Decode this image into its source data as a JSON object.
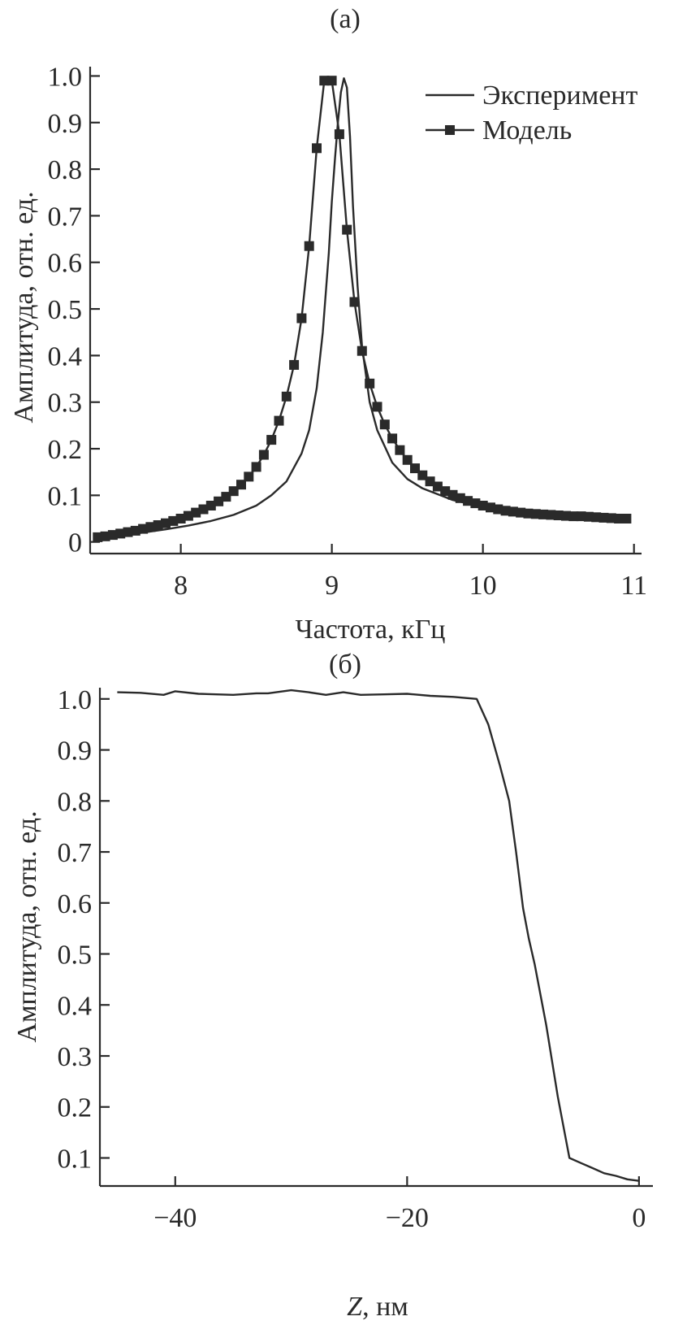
{
  "chart_data": [
    {
      "type": "line",
      "panel_label": "(a)",
      "xlabel": "Частота, кГц",
      "ylabel": "Амплитуда, отн. ед.",
      "xlim": [
        7.4,
        11.05
      ],
      "ylim": [
        -0.025,
        1.02
      ],
      "x_ticks": [
        8,
        9,
        10,
        11
      ],
      "x_tick_labels": [
        "8",
        "9",
        "10",
        "11"
      ],
      "y_ticks": [
        0,
        0.1,
        0.2,
        0.3,
        0.4,
        0.5,
        0.6,
        0.7,
        0.8,
        0.9,
        1.0
      ],
      "y_tick_labels": [
        "0",
        "0.1",
        "0.2",
        "0.3",
        "0.4",
        "0.5",
        "0.6",
        "0.7",
        "0.8",
        "0.9",
        "1.0"
      ],
      "legend_position": "top-right",
      "grid": false,
      "series": [
        {
          "name": "Эксперимент",
          "marker": "none",
          "x": [
            7.45,
            7.6,
            7.75,
            7.9,
            8.05,
            8.2,
            8.35,
            8.5,
            8.6,
            8.7,
            8.8,
            8.85,
            8.9,
            8.94,
            8.98,
            9.0,
            9.02,
            9.04,
            9.06,
            9.08,
            9.1,
            9.12,
            9.14,
            9.17,
            9.2,
            9.25,
            9.3,
            9.4,
            9.5,
            9.6,
            9.8,
            10.0,
            10.2
          ],
          "y": [
            0.01,
            0.015,
            0.02,
            0.027,
            0.035,
            0.045,
            0.058,
            0.078,
            0.1,
            0.13,
            0.19,
            0.24,
            0.33,
            0.45,
            0.62,
            0.73,
            0.82,
            0.9,
            0.965,
            0.995,
            0.975,
            0.87,
            0.72,
            0.55,
            0.42,
            0.3,
            0.24,
            0.17,
            0.135,
            0.115,
            0.09,
            0.075,
            0.068
          ]
        },
        {
          "name": "Модель",
          "marker": "square",
          "x": [
            7.45,
            7.5,
            7.55,
            7.6,
            7.65,
            7.7,
            7.75,
            7.8,
            7.85,
            7.9,
            7.95,
            8.0,
            8.05,
            8.1,
            8.15,
            8.2,
            8.25,
            8.3,
            8.35,
            8.4,
            8.45,
            8.5,
            8.55,
            8.6,
            8.65,
            8.7,
            8.75,
            8.8,
            8.85,
            8.9,
            8.95,
            9.0,
            9.05,
            9.1,
            9.15,
            9.2,
            9.25,
            9.3,
            9.35,
            9.4,
            9.45,
            9.5,
            9.55,
            9.6,
            9.65,
            9.7,
            9.75,
            9.8,
            9.85,
            9.9,
            9.95,
            10.0,
            10.05,
            10.1,
            10.15,
            10.2,
            10.25,
            10.3,
            10.35,
            10.4,
            10.45,
            10.5,
            10.55,
            10.6,
            10.65,
            10.7,
            10.75,
            10.8,
            10.85,
            10.9,
            10.95
          ],
          "y": [
            0.01,
            0.012,
            0.015,
            0.018,
            0.021,
            0.024,
            0.028,
            0.032,
            0.036,
            0.04,
            0.045,
            0.05,
            0.056,
            0.063,
            0.07,
            0.078,
            0.087,
            0.097,
            0.109,
            0.123,
            0.14,
            0.161,
            0.187,
            0.219,
            0.26,
            0.312,
            0.38,
            0.48,
            0.635,
            0.845,
            0.99,
            0.99,
            0.875,
            0.67,
            0.515,
            0.41,
            0.34,
            0.29,
            0.252,
            0.222,
            0.197,
            0.176,
            0.158,
            0.143,
            0.13,
            0.119,
            0.109,
            0.101,
            0.094,
            0.088,
            0.083,
            0.078,
            0.074,
            0.07,
            0.067,
            0.065,
            0.063,
            0.061,
            0.06,
            0.059,
            0.058,
            0.057,
            0.056,
            0.055,
            0.055,
            0.054,
            0.053,
            0.052,
            0.051,
            0.05,
            0.05
          ]
        }
      ]
    },
    {
      "type": "line",
      "panel_label": "(б)",
      "xlabel_italic": "Z",
      "xlabel": ", нм",
      "ylabel": "Амплитуда, отн. ед.",
      "xlim": [
        -46.5,
        1.2
      ],
      "ylim": [
        0.045,
        1.022
      ],
      "x_ticks": [
        -40,
        -20,
        0
      ],
      "x_tick_labels": [
        "−40",
        "−20",
        "0"
      ],
      "y_ticks": [
        0.1,
        0.2,
        0.3,
        0.4,
        0.5,
        0.6,
        0.7,
        0.8,
        0.9,
        1.0
      ],
      "y_tick_labels": [
        "0.1",
        "0.2",
        "0.3",
        "0.4",
        "0.5",
        "0.6",
        "0.7",
        "0.8",
        "0.9",
        "1.0"
      ],
      "grid": false,
      "series": [
        {
          "name": "",
          "marker": "none",
          "x": [
            -45,
            -43,
            -41,
            -40,
            -38,
            -35,
            -33,
            -32,
            -30,
            -28.5,
            -27,
            -25.5,
            -24,
            -22,
            -20,
            -18,
            -16,
            -14,
            -13,
            -12,
            -11.2,
            -10.6,
            -10,
            -9.5,
            -9,
            -8,
            -7,
            -6,
            -5,
            -4,
            -3,
            -2,
            -1,
            0
          ],
          "y": [
            1.013,
            1.012,
            1.008,
            1.015,
            1.01,
            1.008,
            1.011,
            1.011,
            1.017,
            1.013,
            1.008,
            1.013,
            1.008,
            1.009,
            1.01,
            1.006,
            1.004,
            1.0,
            0.95,
            0.87,
            0.8,
            0.7,
            0.59,
            0.53,
            0.48,
            0.36,
            0.22,
            0.1,
            0.09,
            0.08,
            0.07,
            0.065,
            0.058,
            0.055
          ]
        }
      ]
    }
  ]
}
